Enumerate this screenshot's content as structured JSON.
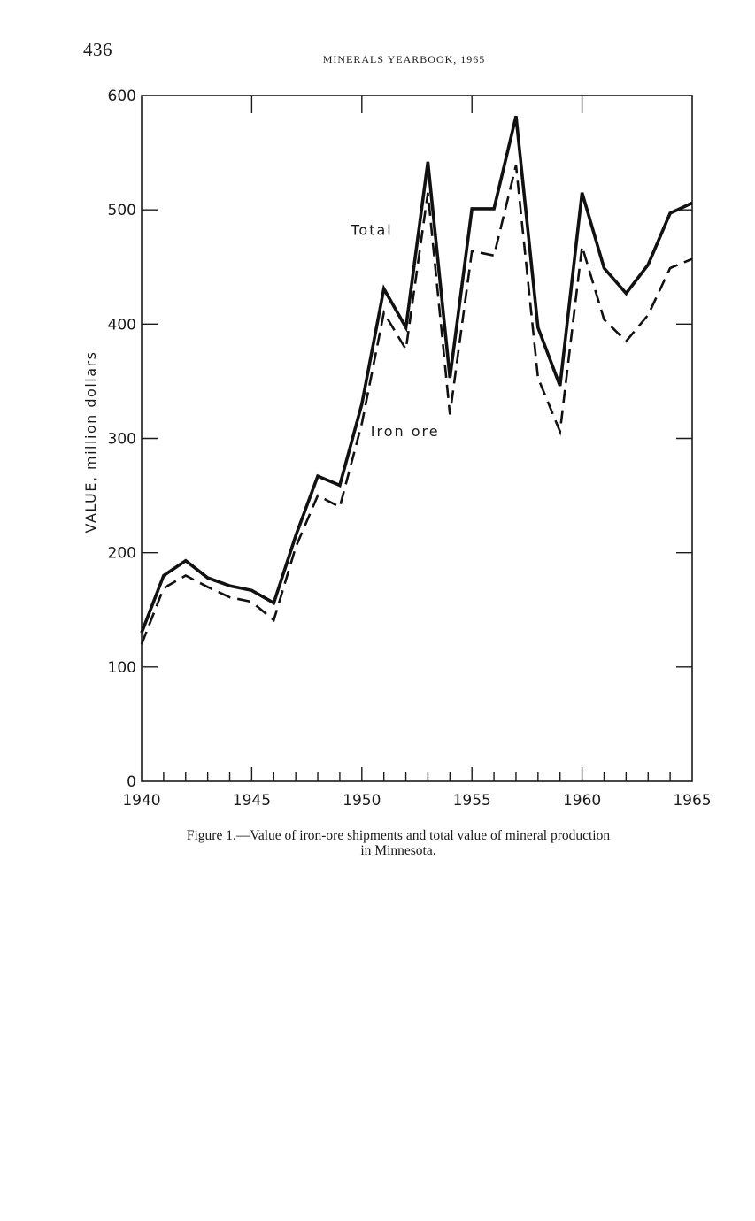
{
  "page": {
    "page_number": "436",
    "running_head": "MINERALS YEARBOOK, 1965",
    "caption_line1": "Figure 1.—Value of iron-ore shipments and total value of mineral production",
    "caption_line2": "in Minnesota."
  },
  "chart_data": {
    "type": "line",
    "title": "",
    "xlabel": "",
    "ylabel": "VALUE, million dollars",
    "xlim": [
      1940,
      1965
    ],
    "ylim": [
      0,
      600
    ],
    "x_ticks": [
      1940,
      1945,
      1950,
      1955,
      1960,
      1965
    ],
    "y_ticks": [
      0,
      100,
      200,
      300,
      400,
      500,
      600
    ],
    "x_tick_labels": [
      "1940",
      "1945",
      "1950",
      "1955",
      "1960",
      "1965"
    ],
    "y_tick_labels": [
      "0",
      "100",
      "200",
      "300",
      "400",
      "500",
      "600"
    ],
    "grid": false,
    "legend": "inline labels",
    "x": [
      1940,
      1941,
      1942,
      1943,
      1944,
      1945,
      1946,
      1947,
      1948,
      1949,
      1950,
      1951,
      1952,
      1953,
      1954,
      1955,
      1956,
      1957,
      1958,
      1959,
      1960,
      1961,
      1962,
      1963,
      1964,
      1965
    ],
    "series": [
      {
        "name": "Total",
        "style": "solid",
        "color": "#111111",
        "values": [
          130,
          180,
          193,
          178,
          171,
          167,
          156,
          215,
          267,
          259,
          330,
          431,
          397,
          542,
          353,
          501,
          501,
          582,
          397,
          346,
          515,
          449,
          427,
          452,
          497,
          506
        ]
      },
      {
        "name": "Iron ore",
        "style": "dashed",
        "color": "#111111",
        "values": [
          120,
          169,
          180,
          170,
          161,
          157,
          141,
          205,
          250,
          240,
          313,
          410,
          378,
          515,
          321,
          464,
          460,
          539,
          353,
          306,
          468,
          404,
          385,
          408,
          449,
          457
        ]
      }
    ]
  }
}
